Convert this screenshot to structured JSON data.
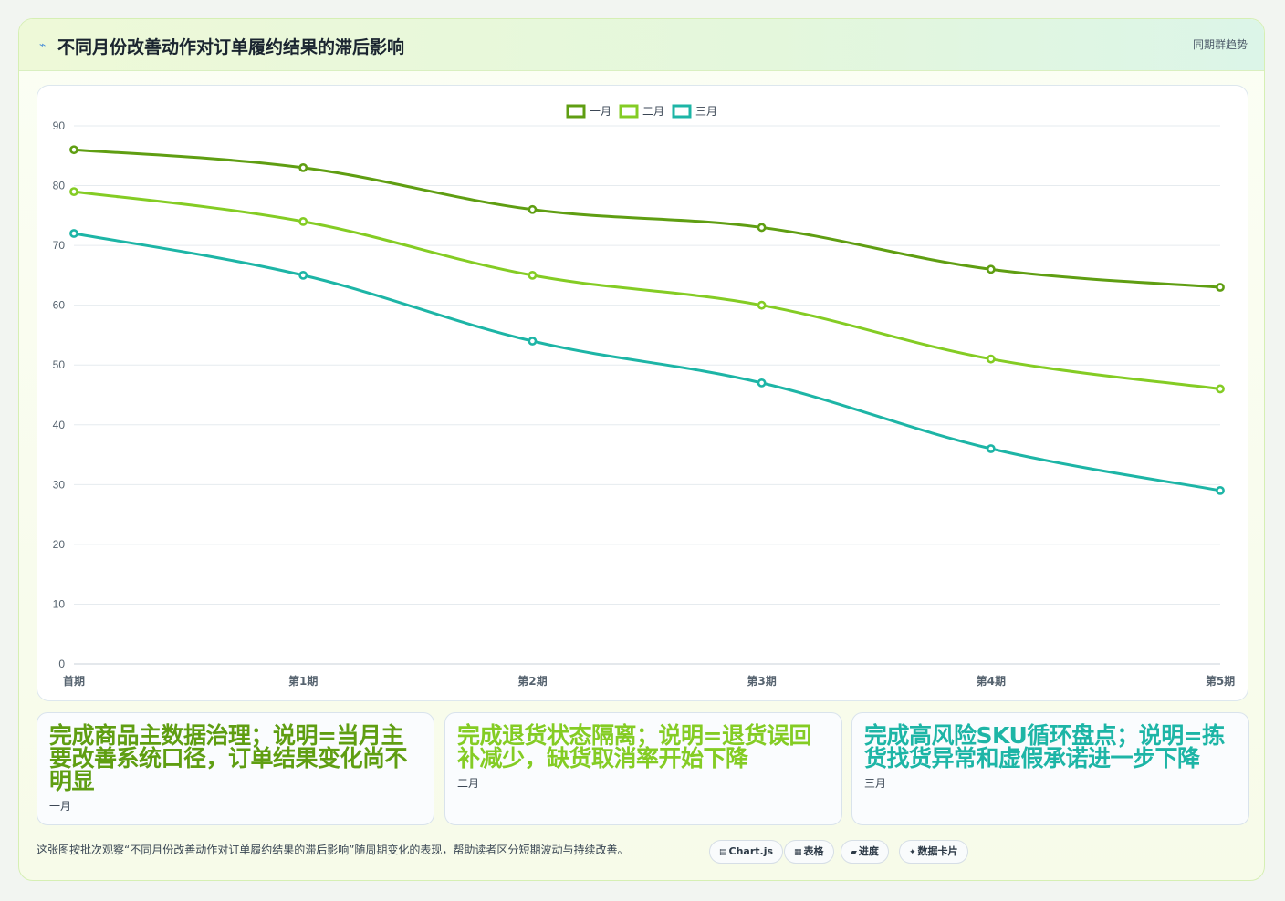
{
  "header": {
    "icon": "lightning-icon",
    "title": "不同月份改善动作对订单履约结果的滞后影响",
    "tag": "同期群趋势"
  },
  "chart_data": {
    "type": "line",
    "categories": [
      "首期",
      "第1期",
      "第2期",
      "第3期",
      "第4期",
      "第5期"
    ],
    "series": [
      {
        "name": "一月",
        "color": "#5f9e12",
        "values": [
          86,
          83,
          76,
          73,
          66,
          63
        ]
      },
      {
        "name": "二月",
        "color": "#84cc24",
        "values": [
          79,
          74,
          65,
          60,
          51,
          46
        ]
      },
      {
        "name": "三月",
        "color": "#1db5a6",
        "values": [
          72,
          65,
          54,
          47,
          36,
          29
        ]
      }
    ],
    "ylim": [
      0,
      90
    ],
    "yticks": [
      0,
      10,
      20,
      30,
      40,
      50,
      60,
      70,
      80,
      90
    ],
    "grid": true,
    "legend": "top-center"
  },
  "notes": [
    {
      "text": "完成商品主数据治理；说明=当月主要改善系统口径，订单结果变化尚不明显",
      "name": "一月",
      "color": "#5f9e12"
    },
    {
      "text": "完成退货状态隔离；说明=退货误回补减少，缺货取消率开始下降",
      "name": "二月",
      "color": "#84cc24"
    },
    {
      "text": "完成高风险SKU循环盘点；说明=拣货找货异常和虚假承诺进一步下降",
      "name": "三月",
      "color": "#1db5a6"
    }
  ],
  "footer": {
    "text": "这张图按批次观察“不同月份改善动作对订单履约结果的滞后影响”随周期变化的表现，帮助读者区分短期波动与持续改善。",
    "pills": [
      {
        "icon": "▤",
        "label": "Chart.js"
      },
      {
        "icon": "▦",
        "label": "表格"
      },
      {
        "icon": "▰",
        "label": "进度"
      },
      {
        "icon": "✦",
        "label": "数据卡片"
      }
    ]
  }
}
